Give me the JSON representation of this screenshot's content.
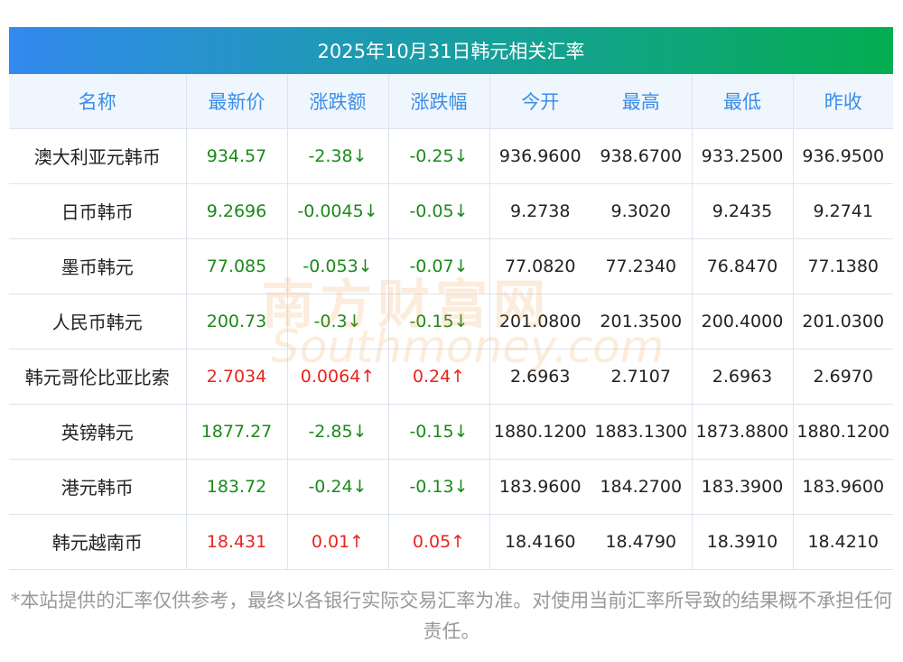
{
  "title": "2025年10月31日韩元相关汇率",
  "headers": [
    "名称",
    "最新价",
    "涨跌额",
    "涨跌幅",
    "今开",
    "最高",
    "最低",
    "昨收"
  ],
  "rows": [
    {
      "name": "澳大利亚元韩币",
      "latest": "934.57",
      "change": "-2.38↓",
      "pct": "-0.25↓",
      "open": "936.9600",
      "high": "938.6700",
      "low": "933.2500",
      "prev": "936.9500",
      "dir": "down"
    },
    {
      "name": "日币韩币",
      "latest": "9.2696",
      "change": "-0.0045↓",
      "pct": "-0.05↓",
      "open": "9.2738",
      "high": "9.3020",
      "low": "9.2435",
      "prev": "9.2741",
      "dir": "down"
    },
    {
      "name": "墨币韩元",
      "latest": "77.085",
      "change": "-0.053↓",
      "pct": "-0.07↓",
      "open": "77.0820",
      "high": "77.2340",
      "low": "76.8470",
      "prev": "77.1380",
      "dir": "down"
    },
    {
      "name": "人民币韩元",
      "latest": "200.73",
      "change": "-0.3↓",
      "pct": "-0.15↓",
      "open": "201.0800",
      "high": "201.3500",
      "low": "200.4000",
      "prev": "201.0300",
      "dir": "down"
    },
    {
      "name": "韩元哥伦比亚比索",
      "latest": "2.7034",
      "change": "0.0064↑",
      "pct": "0.24↑",
      "open": "2.6963",
      "high": "2.7107",
      "low": "2.6963",
      "prev": "2.6970",
      "dir": "up"
    },
    {
      "name": "英镑韩元",
      "latest": "1877.27",
      "change": "-2.85↓",
      "pct": "-0.15↓",
      "open": "1880.1200",
      "high": "1883.1300",
      "low": "1873.8800",
      "prev": "1880.1200",
      "dir": "down"
    },
    {
      "name": "港元韩币",
      "latest": "183.72",
      "change": "-0.24↓",
      "pct": "-0.13↓",
      "open": "183.9600",
      "high": "184.2700",
      "low": "183.3900",
      "prev": "183.9600",
      "dir": "down"
    },
    {
      "name": "韩元越南币",
      "latest": "18.431",
      "change": "0.01↑",
      "pct": "0.05↑",
      "open": "18.4160",
      "high": "18.4790",
      "low": "18.3910",
      "prev": "18.4210",
      "dir": "up"
    }
  ],
  "note": "*本站提供的汇率仅供参考，最终以各银行实际交易汇率为准。对使用当前汇率所导致的结果概不承担任何责任。",
  "watermark": {
    "cn": "南方财富网",
    "en": "southmoney.com"
  },
  "colors": {
    "up": "#e8251e",
    "down": "#1a8a1a",
    "header_text": "#3a8ee6"
  }
}
